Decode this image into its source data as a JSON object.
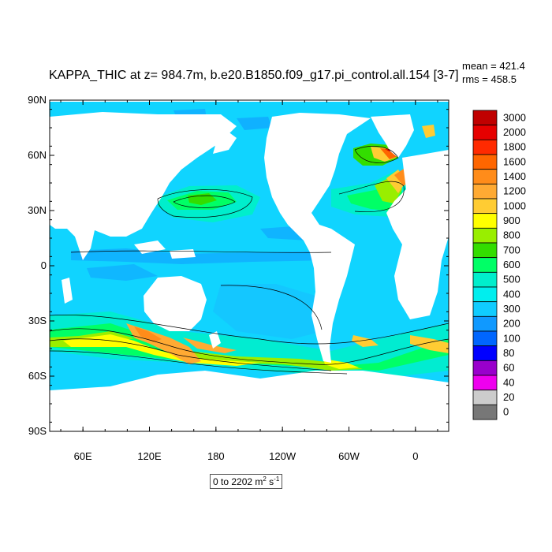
{
  "title": "KAPPA_THIC at z= 984.7m, b.e20.B1850.f09_g17.pi_control.all.154 [3-7]",
  "stats": {
    "mean": "mean = 421.4",
    "rms": "rms = 458.5"
  },
  "range": {
    "text": "0 to 2202 m",
    "sup1": "2",
    "mid": " s",
    "sup2": "-1"
  },
  "lat_ticks": [
    "90N",
    "60N",
    "30N",
    "0",
    "30S",
    "60S",
    "90S"
  ],
  "lon_ticks": [
    "60E",
    "120E",
    "180",
    "120W",
    "60W",
    "0"
  ],
  "colorbar": {
    "levels": [
      "3000",
      "2000",
      "1800",
      "1600",
      "1400",
      "1200",
      "1000",
      "900",
      "800",
      "700",
      "600",
      "500",
      "400",
      "300",
      "200",
      "100",
      "80",
      "60",
      "40",
      "20",
      "0"
    ],
    "colors": [
      "#c00000",
      "#e60000",
      "#ff2a00",
      "#ff6600",
      "#ff8c1a",
      "#ffaa33",
      "#ffcc33",
      "#ffff00",
      "#99ee00",
      "#33dd00",
      "#00ff66",
      "#00eecc",
      "#00eeee",
      "#10ccff",
      "#1099ff",
      "#0066ff",
      "#0000ff",
      "#9900cc",
      "#ee00ee",
      "#cccccc",
      "#777777"
    ]
  },
  "colors": {
    "ocean_base": "#10d4ff",
    "land": "#ffffff",
    "contour": "#000000"
  }
}
